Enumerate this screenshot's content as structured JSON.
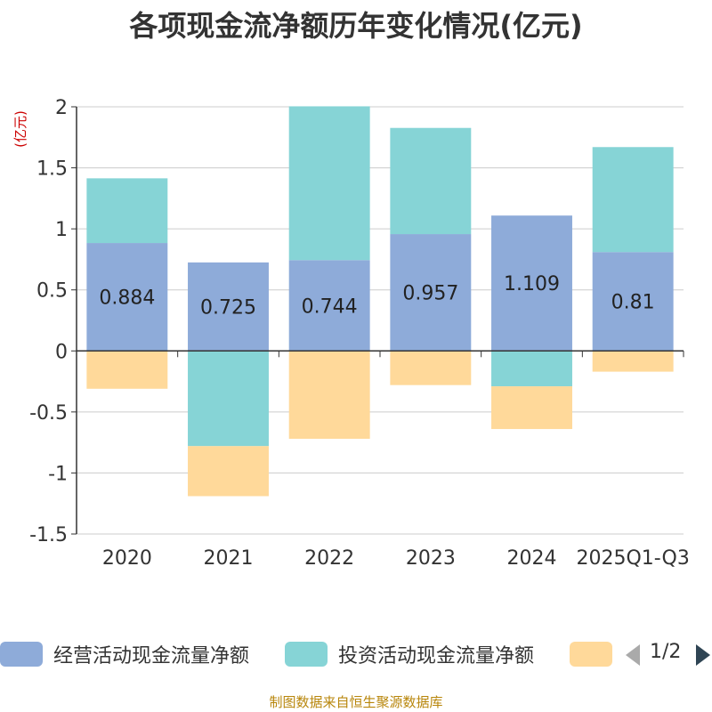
{
  "chart_data": {
    "type": "bar",
    "stacked": true,
    "title": "各项现金流净额历年变化情况(亿元)",
    "ylabel": "(亿元)",
    "xlabel": "",
    "ylim": [
      -1.5,
      2
    ],
    "yticks": [
      2,
      1.5,
      1,
      0.5,
      0,
      -0.5,
      -1,
      -1.5
    ],
    "ytick_labels": [
      "2",
      "1.5",
      "1",
      "0.5",
      "0",
      "-0.5",
      "-1",
      "-1.5"
    ],
    "categories": [
      "2020",
      "2021",
      "2022",
      "2023",
      "2024",
      "2025Q1-Q3"
    ],
    "grid": true,
    "series": [
      {
        "name": "经营活动现金流量净额",
        "color": "#8eabd9",
        "values": [
          0.884,
          0.725,
          0.744,
          0.957,
          1.109,
          0.81
        ],
        "data_labels": [
          "0.884",
          "0.725",
          "0.744",
          "0.957",
          "1.109",
          "0.81"
        ]
      },
      {
        "name": "投资活动现金流量净额",
        "color": "#86d4d6",
        "values": [
          0.53,
          -0.78,
          1.26,
          0.87,
          -0.29,
          0.86
        ]
      },
      {
        "name": "",
        "color": "#ffd99a",
        "values": [
          -0.31,
          -0.41,
          -0.72,
          -0.28,
          -0.35,
          -0.17
        ]
      }
    ]
  },
  "legend": {
    "items": [
      "经营活动现金流量净额",
      "投资活动现金流量净额"
    ],
    "page_indicator": "1/2"
  },
  "source_note": "制图数据来自恒生聚源数据库"
}
